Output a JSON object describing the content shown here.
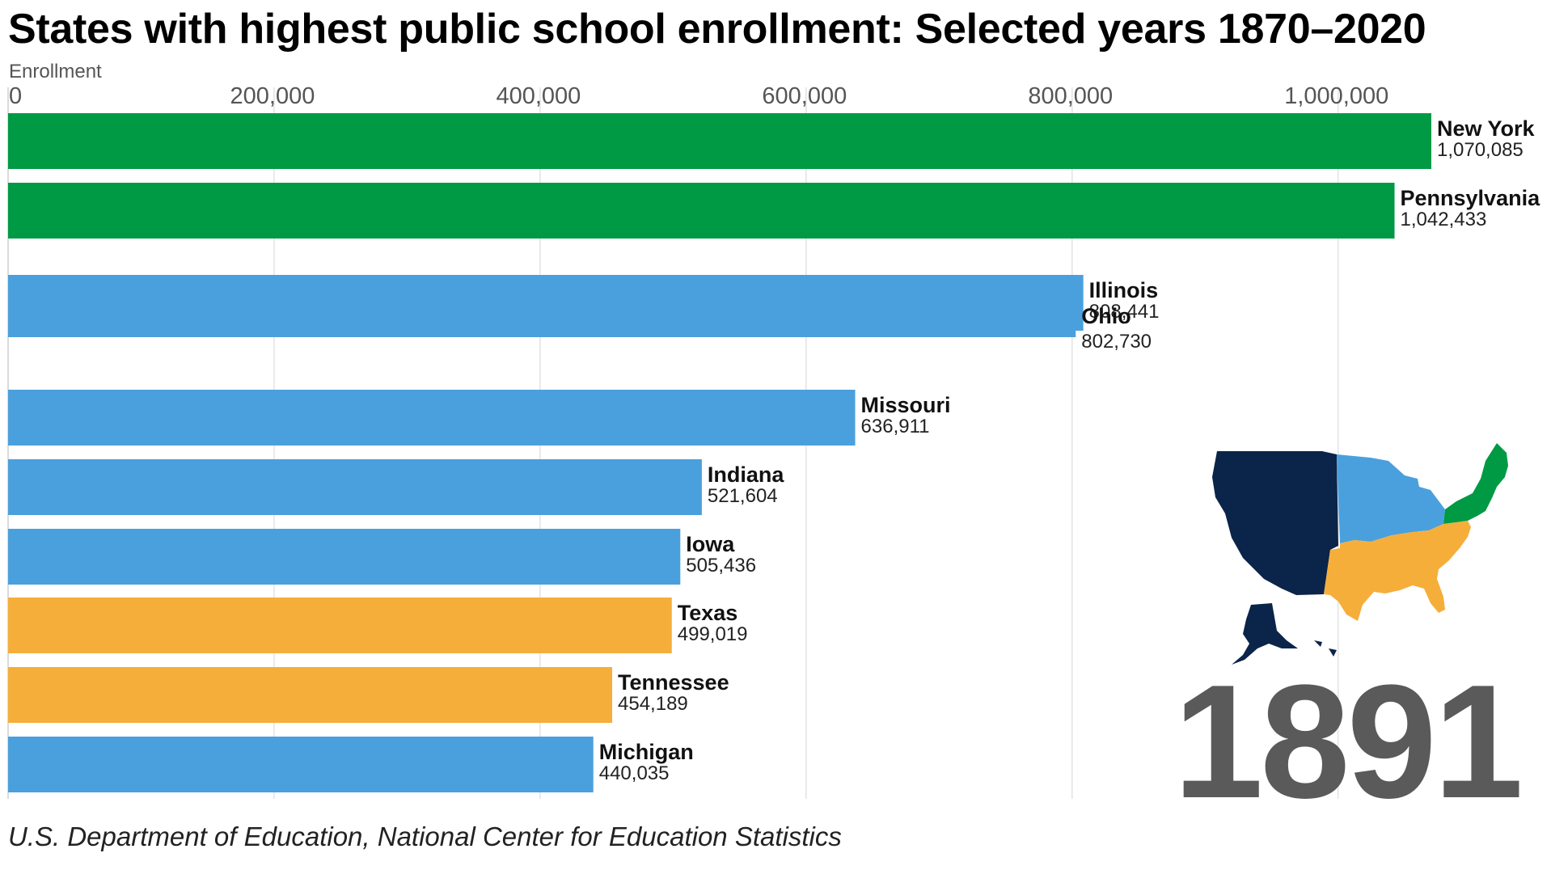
{
  "title": "States with highest public school enrollment: Selected years 1870–2020",
  "source": "U.S. Department of Education, National Center for Education Statistics",
  "year_label": "1891",
  "colors": {
    "northeast": "#009a44",
    "midwest": "#4aa0dd",
    "south": "#f6ae3a",
    "west": "#0b2449",
    "grid": "#e3e3e3",
    "year": "#5a5a5a"
  },
  "map_icon": "us-regions-map-icon",
  "chart_data": {
    "type": "bar",
    "orientation": "horizontal",
    "title": "States with highest public school enrollment: Selected years 1870–2020",
    "axis_title": "Enrollment",
    "xlim": [
      0,
      1070085
    ],
    "ticks": [
      0,
      200000,
      400000,
      600000,
      800000,
      1000000
    ],
    "tick_labels": [
      "0",
      "200,000",
      "400,000",
      "600,000",
      "800,000",
      "1,000,000"
    ],
    "grid": true,
    "bars": [
      {
        "state": "New York",
        "value": 1070085,
        "value_label": "1,070,085",
        "region": "northeast"
      },
      {
        "state": "Pennsylvania",
        "value": 1042433,
        "value_label": "1,042,433",
        "region": "northeast"
      },
      {
        "state": "Illinois",
        "value": 808441,
        "value_label": "808,441",
        "region": "midwest"
      },
      {
        "state": "Ohio",
        "value": 802730,
        "value_label": "802,730",
        "region": "midwest"
      },
      {
        "state": "Missouri",
        "value": 636911,
        "value_label": "636,911",
        "region": "midwest"
      },
      {
        "state": "Indiana",
        "value": 521604,
        "value_label": "521,604",
        "region": "midwest"
      },
      {
        "state": "Iowa",
        "value": 505436,
        "value_label": "505,436",
        "region": "midwest"
      },
      {
        "state": "Texas",
        "value": 499019,
        "value_label": "499,019",
        "region": "south"
      },
      {
        "state": "Tennessee",
        "value": 454189,
        "value_label": "454,189",
        "region": "south"
      },
      {
        "state": "Michigan",
        "value": 440035,
        "value_label": "440,035",
        "region": "midwest"
      }
    ]
  }
}
